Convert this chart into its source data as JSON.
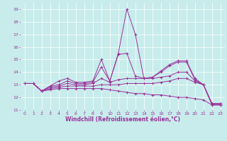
{
  "xlabel": "Windchill (Refroidissement éolien,°C)",
  "ylabel": "",
  "bg_color": "#c8ecec",
  "line_color": "#993399",
  "grid_color": "#ffffff",
  "xlim": [
    -0.5,
    23.5
  ],
  "ylim": [
    11,
    19.5
  ],
  "yticks": [
    11,
    12,
    13,
    14,
    15,
    16,
    17,
    18,
    19
  ],
  "xticks": [
    0,
    1,
    2,
    3,
    4,
    5,
    6,
    7,
    8,
    9,
    10,
    11,
    12,
    13,
    14,
    15,
    16,
    17,
    18,
    19,
    20,
    21,
    22,
    23
  ],
  "lines": [
    {
      "x": [
        0,
        1,
        2,
        3,
        4,
        5,
        6,
        7,
        8,
        9,
        10,
        11,
        12,
        13,
        14,
        15,
        16,
        17,
        18,
        19,
        20,
        21,
        22,
        23
      ],
      "y": [
        13.1,
        13.1,
        12.5,
        12.9,
        13.3,
        13.5,
        13.2,
        13.2,
        13.3,
        15.0,
        13.3,
        15.5,
        19.0,
        17.0,
        13.5,
        13.6,
        14.1,
        14.6,
        14.9,
        14.9,
        13.5,
        13.0,
        11.4,
        11.4
      ]
    },
    {
      "x": [
        0,
        1,
        2,
        3,
        4,
        5,
        6,
        7,
        8,
        9,
        10,
        11,
        12,
        13,
        14,
        15,
        16,
        17,
        18,
        19,
        20,
        21,
        22,
        23
      ],
      "y": [
        13.1,
        13.1,
        12.5,
        12.9,
        13.0,
        13.3,
        13.1,
        13.1,
        13.2,
        14.4,
        13.3,
        15.4,
        15.5,
        13.7,
        13.5,
        13.6,
        14.0,
        14.5,
        14.8,
        14.8,
        13.4,
        13.0,
        11.5,
        11.5
      ]
    },
    {
      "x": [
        0,
        1,
        2,
        3,
        4,
        5,
        6,
        7,
        8,
        9,
        10,
        11,
        12,
        13,
        14,
        15,
        16,
        17,
        18,
        19,
        20,
        21,
        22,
        23
      ],
      "y": [
        13.1,
        13.1,
        12.5,
        12.8,
        12.9,
        13.1,
        13.0,
        13.0,
        13.1,
        13.5,
        13.2,
        13.4,
        13.5,
        13.5,
        13.5,
        13.5,
        13.6,
        13.7,
        14.0,
        14.0,
        13.3,
        13.0,
        11.5,
        11.5
      ]
    },
    {
      "x": [
        0,
        1,
        2,
        3,
        4,
        5,
        6,
        7,
        8,
        9,
        10,
        11,
        12,
        13,
        14,
        15,
        16,
        17,
        18,
        19,
        20,
        21,
        22,
        23
      ],
      "y": [
        13.1,
        13.1,
        12.5,
        12.7,
        12.8,
        12.9,
        12.9,
        12.9,
        12.9,
        13.0,
        13.0,
        13.0,
        13.1,
        13.1,
        13.1,
        13.1,
        13.2,
        13.3,
        13.5,
        13.5,
        13.2,
        13.0,
        11.5,
        11.5
      ]
    },
    {
      "x": [
        0,
        1,
        2,
        3,
        4,
        5,
        6,
        7,
        8,
        9,
        10,
        11,
        12,
        13,
        14,
        15,
        16,
        17,
        18,
        19,
        20,
        21,
        22,
        23
      ],
      "y": [
        13.1,
        13.1,
        12.5,
        12.6,
        12.7,
        12.7,
        12.7,
        12.7,
        12.7,
        12.7,
        12.6,
        12.5,
        12.4,
        12.3,
        12.3,
        12.2,
        12.2,
        12.1,
        12.0,
        12.0,
        11.9,
        11.8,
        11.4,
        11.4
      ]
    }
  ],
  "tick_fontsize": 4.5,
  "label_fontsize": 5.5,
  "marker": "+",
  "markersize": 2.5,
  "linewidth": 0.7
}
